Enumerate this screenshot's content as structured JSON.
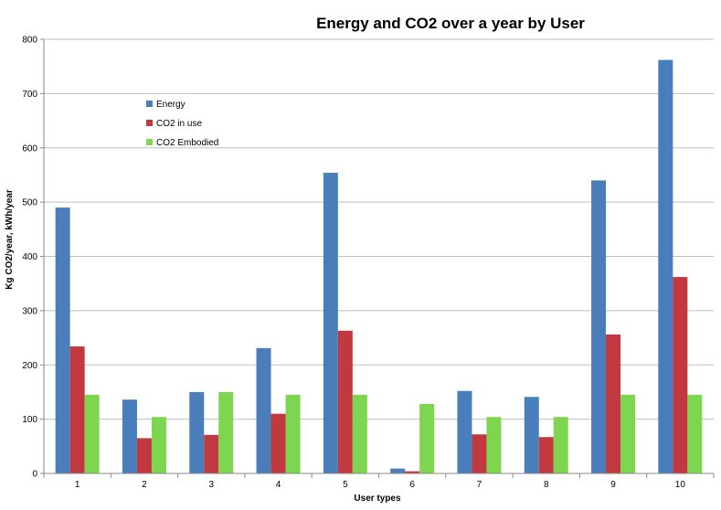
{
  "chart_data": {
    "type": "bar",
    "title": "Energy and CO2 over a year by User",
    "xlabel": "User types",
    "ylabel": "Kg CO2/year, kWh/year",
    "ylim": [
      0,
      800
    ],
    "yticks": [
      0,
      100,
      200,
      300,
      400,
      500,
      600,
      700,
      800
    ],
    "grid": true,
    "legend_position": "top-left",
    "categories": [
      "1",
      "2",
      "3",
      "4",
      "5",
      "6",
      "7",
      "8",
      "9",
      "10"
    ],
    "series": [
      {
        "name": "Energy",
        "color": "#4a7ebb",
        "values": [
          490,
          136,
          150,
          231,
          554,
          9,
          152,
          141,
          540,
          762
        ]
      },
      {
        "name": "CO2 in use",
        "color": "#c0393f",
        "values": [
          234,
          65,
          71,
          110,
          263,
          4,
          72,
          67,
          256,
          362
        ]
      },
      {
        "name": "CO2 Embodied",
        "color": "#7ed650",
        "values": [
          145,
          104,
          150,
          145,
          145,
          128,
          104,
          104,
          145,
          145
        ]
      }
    ]
  }
}
